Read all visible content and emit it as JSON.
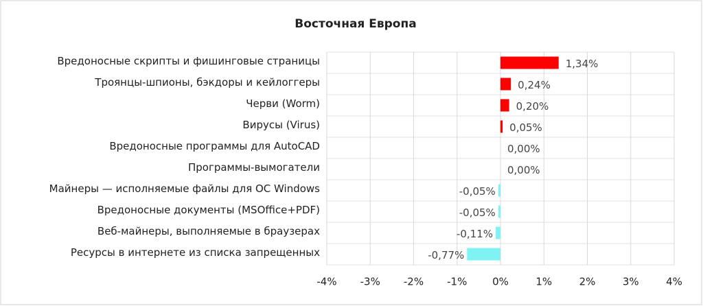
{
  "chart_data": {
    "type": "hbar",
    "title": "Восточная Европа",
    "categories": [
      "Вредоносные скрипты и фишинговые страницы",
      "Троянцы-шпионы, бэкдоры и кейлоггеры",
      "Черви (Worm)",
      "Вирусы (Virus)",
      "Вредоносные программы для AutoCAD",
      "Программы-вымогатели",
      "Майнеры — исполняемые файлы для ОС Windows",
      "Вредоносные документы (MSOffice+PDF)",
      "Веб-майнеры, выполняемые в браузерах",
      "Ресурсы в интернете из списка запрещенных"
    ],
    "values": [
      1.34,
      0.24,
      0.2,
      0.05,
      0.0,
      0.0,
      -0.05,
      -0.05,
      -0.11,
      -0.77
    ],
    "value_labels": [
      "1,34%",
      "0,24%",
      "0,20%",
      "0,05%",
      "0,00%",
      "0,00%",
      "-0,05%",
      "-0,05%",
      "-0,11%",
      "-0,77%"
    ],
    "colors": [
      "#ff0000",
      "#ff0000",
      "#ff0000",
      "#ff0000",
      "#ff0000",
      "#ff0000",
      "#7ff3f3",
      "#7ff3f3",
      "#7ff3f3",
      "#7ff3f3"
    ],
    "xlim": [
      -4,
      4
    ],
    "xticks": [
      {
        "value": -4,
        "label": "-4%"
      },
      {
        "value": -3,
        "label": "-3%"
      },
      {
        "value": -2,
        "label": "-2%"
      },
      {
        "value": -1,
        "label": "-1%"
      },
      {
        "value": 0,
        "label": "0%"
      },
      {
        "value": 1,
        "label": "1%"
      },
      {
        "value": 2,
        "label": "2%"
      },
      {
        "value": 3,
        "label": "3%"
      },
      {
        "value": 4,
        "label": "4%"
      }
    ],
    "grid": true
  }
}
